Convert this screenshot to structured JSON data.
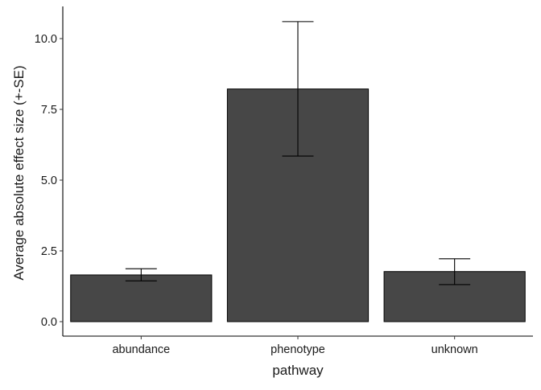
{
  "chart_data": {
    "type": "bar",
    "categories": [
      "abundance",
      "phenotype",
      "unknown"
    ],
    "series": [
      {
        "values": [
          1.65,
          8.22,
          1.77
        ],
        "error_low": [
          1.44,
          5.85,
          1.31
        ],
        "error_high": [
          1.87,
          10.6,
          2.22
        ]
      }
    ],
    "xlabel": "pathway",
    "ylabel": "Average absolute effect size (+-SE)",
    "ylim": [
      0,
      11.1
    ],
    "yticks": [
      0,
      2.5,
      5,
      7.5,
      10
    ],
    "ytick_labels": [
      "0.0",
      "2.5",
      "5.0",
      "7.5",
      "10.0"
    ],
    "grid": false,
    "bar_color": "#474747"
  }
}
